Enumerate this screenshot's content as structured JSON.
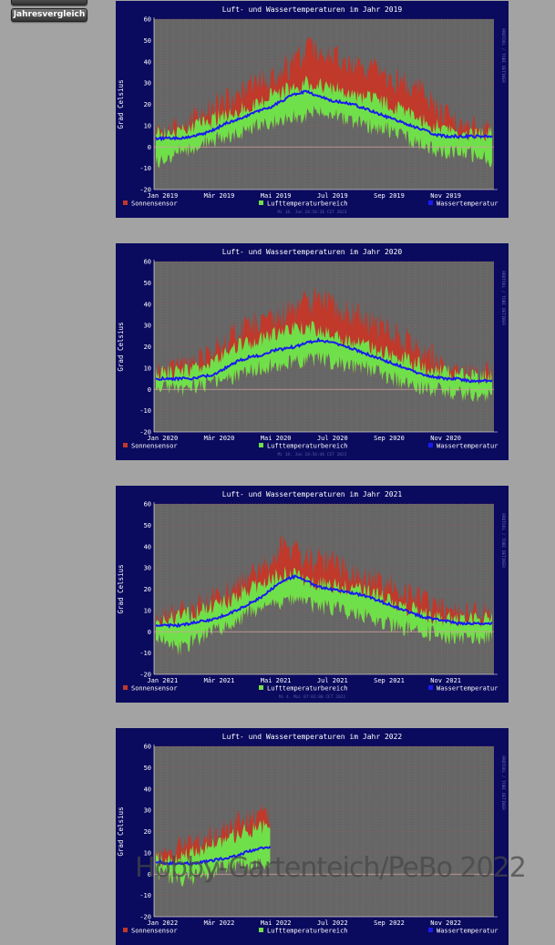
{
  "nav": {
    "top_button_label": "",
    "jahresvergleich_label": "Jahresvergleich"
  },
  "watermark": "Hobby-Gartenteich/PeBo 2022",
  "colors": {
    "frame": "#0a0a5e",
    "plot_bg": "#666666",
    "sonnensensor": "#c0392b",
    "luft": "#6fe04a",
    "wasser": "#1a1aee",
    "text": "#ffffff",
    "zero_line": "#d8a0a0"
  },
  "chart_data": [
    {
      "type": "area",
      "title": "Luft- und Wassertemperaturen im Jahr 2019",
      "ylabel": "Grad Celsius",
      "right_label": "RRDTOOL / TOBI OETIKER",
      "footer": "Mi 18. Jan 18:56:36 CET 2023",
      "ylim": [
        -20,
        60
      ],
      "yticks": [
        -20,
        -10,
        0,
        10,
        20,
        30,
        40,
        50,
        60
      ],
      "xticks": [
        "Jan 2019",
        "Mär 2019",
        "Mai 2019",
        "Jul 2019",
        "Sep 2019",
        "Nov 2019"
      ],
      "legend": [
        "Sonnensensor",
        "Lufttemperaturbereich",
        "Wassertemperatur"
      ],
      "coverage": 1.0,
      "series": [
        {
          "name": "Sonnensensor",
          "values": [
            8,
            9,
            10,
            12,
            15,
            18,
            22,
            25,
            28,
            30,
            33,
            36,
            40,
            45,
            46,
            44,
            42,
            40,
            38,
            35,
            32,
            30,
            28,
            25,
            20,
            15,
            12,
            10,
            9,
            8
          ]
        },
        {
          "name": "Lufttemperaturbereich max",
          "values": [
            6,
            7,
            8,
            9,
            11,
            13,
            15,
            17,
            19,
            22,
            24,
            26,
            28,
            30,
            30,
            28,
            26,
            24,
            23,
            22,
            20,
            18,
            16,
            13,
            10,
            8,
            7,
            6,
            6,
            6
          ]
        },
        {
          "name": "Lufttemperaturbereich min",
          "values": [
            -8,
            -6,
            -3,
            -1,
            2,
            3,
            4,
            6,
            8,
            10,
            12,
            13,
            14,
            15,
            16,
            15,
            13,
            12,
            10,
            9,
            8,
            6,
            3,
            1,
            -1,
            -2,
            -3,
            -3,
            -4,
            -6
          ]
        },
        {
          "name": "Wassertemperatur",
          "values": [
            4,
            4,
            4,
            5,
            6,
            8,
            11,
            13,
            15,
            17,
            19,
            22,
            25,
            26,
            24,
            22,
            21,
            20,
            18,
            16,
            14,
            12,
            10,
            8,
            6,
            5,
            5,
            5,
            5,
            5
          ]
        }
      ]
    },
    {
      "type": "area",
      "title": "Luft- und Wassertemperaturen im Jahr 2020",
      "ylabel": "Grad Celsius",
      "right_label": "RRDTOOL / TOBI OETIKER",
      "footer": "Mi 18. Jan 18:56:46 CET 2023",
      "ylim": [
        -20,
        60
      ],
      "yticks": [
        -20,
        -10,
        0,
        10,
        20,
        30,
        40,
        50,
        60
      ],
      "xticks": [
        "Jan 2020",
        "Mär 2020",
        "Mai 2020",
        "Jul 2020",
        "Sep 2020",
        "Nov 2020"
      ],
      "legend": [
        "Sonnensensor",
        "Lufttemperaturbereich",
        "Wassertemperatur"
      ],
      "coverage": 1.0,
      "series": [
        {
          "name": "Sonnensensor",
          "values": [
            7,
            8,
            9,
            11,
            14,
            18,
            22,
            26,
            30,
            32,
            34,
            36,
            38,
            40,
            42,
            40,
            38,
            35,
            33,
            30,
            28,
            25,
            22,
            18,
            14,
            11,
            9,
            8,
            7,
            7
          ]
        },
        {
          "name": "Lufttemperaturbereich max",
          "values": [
            7,
            8,
            8,
            9,
            10,
            13,
            16,
            20,
            22,
            24,
            26,
            27,
            28,
            29,
            28,
            26,
            24,
            22,
            21,
            19,
            17,
            15,
            13,
            11,
            9,
            8,
            7,
            6,
            6,
            6
          ]
        },
        {
          "name": "Lufttemperaturbereich min",
          "values": [
            0,
            0,
            0,
            1,
            2,
            4,
            5,
            6,
            8,
            10,
            11,
            12,
            13,
            14,
            14,
            13,
            12,
            11,
            10,
            8,
            6,
            4,
            2,
            1,
            0,
            -1,
            -2,
            -2,
            -3,
            -3
          ]
        },
        {
          "name": "Wassertemperatur",
          "values": [
            5,
            5,
            5,
            5,
            6,
            7,
            10,
            13,
            15,
            16,
            18,
            19,
            20,
            22,
            23,
            22,
            21,
            19,
            17,
            15,
            13,
            11,
            9,
            7,
            6,
            5,
            5,
            4,
            4,
            4
          ]
        }
      ]
    },
    {
      "type": "area",
      "title": "Luft- und Wassertemperaturen im Jahr 2021",
      "ylabel": "Grad Celsius",
      "right_label": "RRDTOOL / TOBI OETIKER",
      "footer": "Mi 4. Mai 07:01:00 CET 2022",
      "ylim": [
        -20,
        60
      ],
      "yticks": [
        -20,
        -10,
        0,
        10,
        20,
        30,
        40,
        50,
        60
      ],
      "xticks": [
        "Jan 2021",
        "Mär 2021",
        "Mai 2021",
        "Jul 2021",
        "Sep 2021",
        "Nov 2021"
      ],
      "legend": [
        "Sonnensensor",
        "Lufttemperaturbereich",
        "Wassertemperatur"
      ],
      "coverage": 1.0,
      "series": [
        {
          "name": "Sonnensensor",
          "values": [
            6,
            7,
            8,
            10,
            12,
            15,
            18,
            22,
            26,
            30,
            35,
            40,
            38,
            34,
            33,
            32,
            30,
            28,
            26,
            24,
            22,
            20,
            17,
            14,
            11,
            9,
            8,
            7,
            7,
            8
          ]
        },
        {
          "name": "Lufttemperaturbereich max",
          "values": [
            5,
            6,
            7,
            8,
            10,
            12,
            14,
            17,
            20,
            22,
            25,
            27,
            26,
            24,
            23,
            22,
            21,
            20,
            19,
            17,
            15,
            13,
            11,
            9,
            7,
            6,
            6,
            6,
            6,
            7
          ]
        },
        {
          "name": "Lufttemperaturbereich min",
          "values": [
            -2,
            -4,
            -8,
            -5,
            -2,
            0,
            3,
            5,
            8,
            10,
            12,
            14,
            14,
            13,
            12,
            11,
            10,
            9,
            8,
            6,
            4,
            2,
            1,
            0,
            -1,
            -2,
            -3,
            -4,
            -3,
            -2
          ]
        },
        {
          "name": "Wassertemperatur",
          "values": [
            3,
            3,
            3,
            4,
            5,
            6,
            8,
            10,
            13,
            16,
            20,
            24,
            26,
            24,
            21,
            20,
            19,
            18,
            17,
            15,
            13,
            11,
            9,
            7,
            6,
            5,
            4,
            4,
            4,
            4
          ]
        }
      ]
    },
    {
      "type": "area",
      "title": "Luft- und Wassertemperaturen im Jahr 2022",
      "ylabel": "Grad Celsius",
      "right_label": "RRDTOOL / TOBI OETIKER",
      "footer": "",
      "ylim": [
        -20,
        60
      ],
      "yticks": [
        -20,
        -10,
        0,
        10,
        20,
        30,
        40,
        50,
        60
      ],
      "xticks": [
        "Jan 2022",
        "Mär 2022",
        "Mai 2022",
        "Jul 2022",
        "Sep 2022",
        "Nov 2022"
      ],
      "legend": [
        "Sonnensensor",
        "Lufttemperaturbereich",
        "Wassertemperatur"
      ],
      "coverage": 0.34,
      "series": [
        {
          "name": "Sonnensensor",
          "values": [
            9,
            10,
            11,
            13,
            16,
            19,
            22,
            25,
            27,
            28
          ]
        },
        {
          "name": "Lufttemperaturbereich max",
          "values": [
            7,
            8,
            8,
            10,
            12,
            15,
            18,
            20,
            22,
            23
          ]
        },
        {
          "name": "Lufttemperaturbereich min",
          "values": [
            0,
            -1,
            -2,
            -1,
            1,
            2,
            3,
            4,
            5,
            6
          ]
        },
        {
          "name": "Wassertemperatur",
          "values": [
            6,
            5,
            5,
            5,
            6,
            7,
            8,
            10,
            12,
            13
          ]
        }
      ]
    }
  ]
}
